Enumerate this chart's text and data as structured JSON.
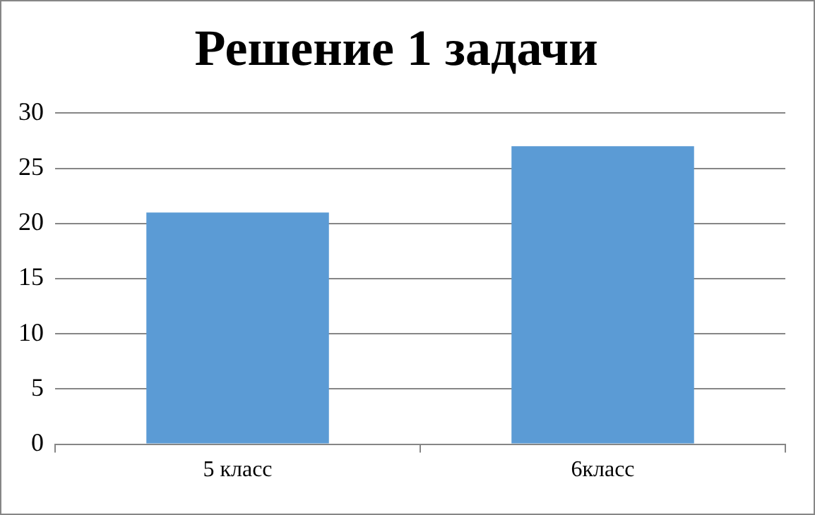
{
  "chart_data": {
    "type": "bar",
    "title": "Решение 1 задачи",
    "categories": [
      "5 класс",
      "6класс"
    ],
    "values": [
      21,
      27
    ],
    "color": "#5b9bd5",
    "ylim": [
      0,
      30
    ],
    "yticks": [
      0,
      5,
      10,
      15,
      20,
      25,
      30
    ],
    "grid": "y",
    "legend": false
  }
}
